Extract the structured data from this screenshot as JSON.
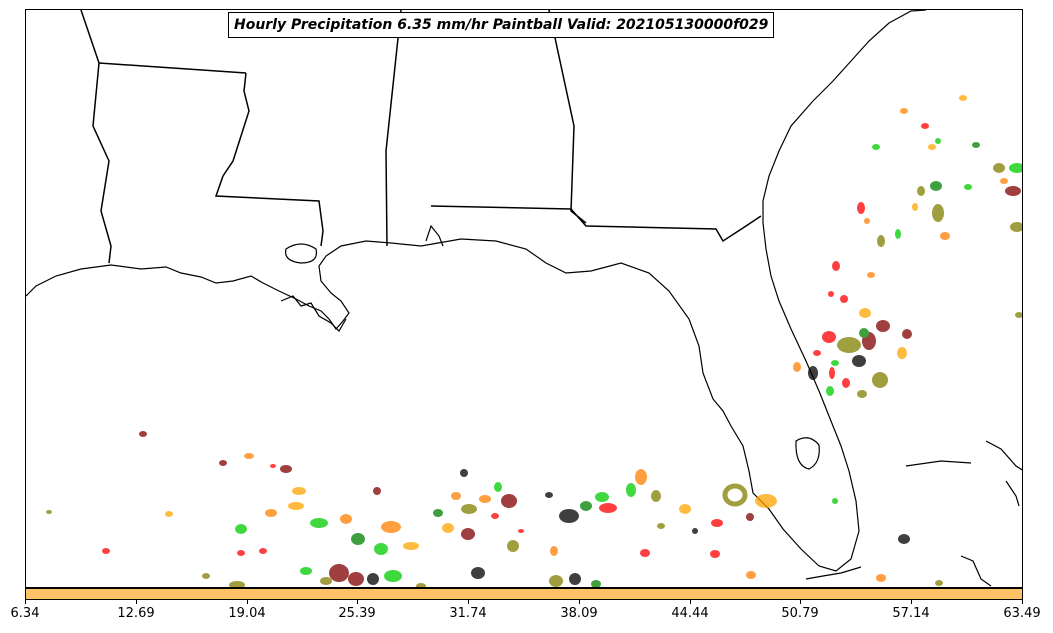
{
  "title": "Hourly Precipitation 6.35 mm/hr Paintball Valid: 202105130000f029",
  "colorbar": {
    "color": "#ffc266",
    "min": 6.34,
    "max": 63.49,
    "ticks": [
      "6.34",
      "12.69",
      "19.04",
      "25.39",
      "31.74",
      "38.09",
      "44.44",
      "50.79",
      "57.14",
      "63.49"
    ]
  },
  "map": {
    "region": "US Gulf Coast and Florida",
    "features": [
      "coastline",
      "state-borders"
    ],
    "line_color": "#000000"
  },
  "paintball_colors": [
    "#ff0000",
    "#00cc00",
    "#ff7f00",
    "#808000",
    "#7f0000",
    "#000000",
    "#ffa500"
  ]
}
